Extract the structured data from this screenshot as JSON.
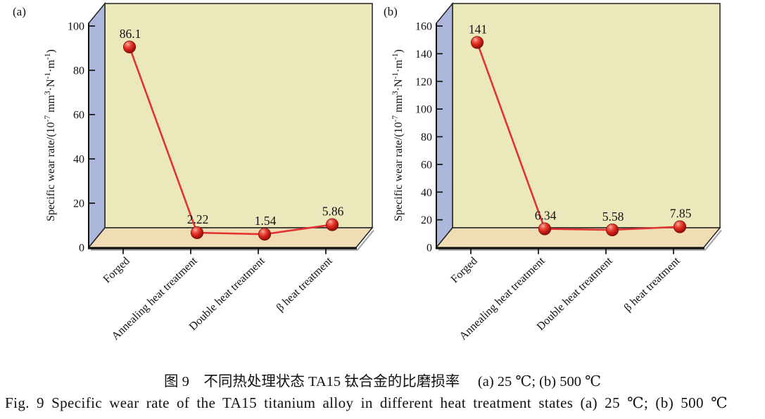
{
  "chart_data": [
    {
      "type": "line",
      "panel_label": "(a)",
      "categories": [
        "Forged",
        "Annealing heat treatment",
        "Double heat treatment",
        "β heat treatment"
      ],
      "values": [
        86.1,
        2.22,
        1.54,
        5.86
      ],
      "point_labels": [
        "86.1",
        "2.22",
        "1.54",
        "5.86"
      ],
      "ylim": [
        0,
        100
      ],
      "yticks": [
        0,
        20,
        40,
        60,
        80,
        100
      ],
      "ylabel_parts": [
        {
          "t": "Specific wear rate/(10"
        },
        {
          "s": "-7"
        },
        {
          "t": " mm"
        },
        {
          "s": "3"
        },
        {
          "t": "·N"
        },
        {
          "s": "-1"
        },
        {
          "t": "·m"
        },
        {
          "s": "-1"
        },
        {
          "t": ")"
        }
      ],
      "line_color": "#e23333",
      "marker_colors": {
        "highlight": "#f7b3a9",
        "mid": "#dc2a1f",
        "dark": "#900f0a",
        "edge": "#6e0c0a"
      },
      "wall_colors": {
        "back": "#ebe8bb",
        "floor": "#f0ddb6",
        "side": "#abb8dc"
      },
      "grid": false,
      "legend": false
    },
    {
      "type": "line",
      "panel_label": "(b)",
      "categories": [
        "Forged",
        "Annealing heat treatment",
        "Double heat treatment",
        "β heat treatment"
      ],
      "values": [
        141,
        6.34,
        5.58,
        7.85
      ],
      "point_labels": [
        "141",
        "6.34",
        "5.58",
        "7.85"
      ],
      "ylim": [
        0,
        160
      ],
      "yticks": [
        0,
        20,
        40,
        60,
        80,
        100,
        120,
        140,
        160
      ],
      "ylabel_parts": [
        {
          "t": "Specific wear rate/(10"
        },
        {
          "s": "-7"
        },
        {
          "t": " mm"
        },
        {
          "s": "3"
        },
        {
          "t": "·N"
        },
        {
          "s": "-1"
        },
        {
          "t": "·m"
        },
        {
          "s": "-1"
        },
        {
          "t": ")"
        }
      ],
      "line_color": "#e23333",
      "marker_colors": {
        "highlight": "#f7b3a9",
        "mid": "#dc2a1f",
        "dark": "#900f0a",
        "edge": "#6e0c0a"
      },
      "wall_colors": {
        "back": "#ebe8bb",
        "floor": "#f0ddb6",
        "side": "#abb8dc"
      },
      "grid": false,
      "legend": false
    }
  ],
  "caption": {
    "zh": "图 9　不同热处理状态 TA15 钛合金的比磨损率　 (a) 25 ℃; (b) 500 ℃",
    "en": "Fig. 9   Specific wear rate of the TA15 titanium alloy in different heat treatment states   (a) 25 ℃; (b) 500 ℃"
  }
}
